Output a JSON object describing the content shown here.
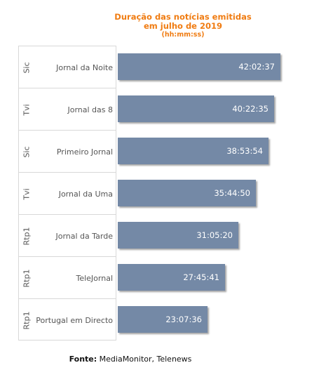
{
  "chart_data": {
    "type": "bar",
    "orientation": "horizontal",
    "title": "Duração das notícias emitidas em julho de 2019",
    "title_lines": [
      "Duração das notícias emitidas",
      "em julho de 2019"
    ],
    "subtitle": "(hh:mm:ss)",
    "bar_color": "#7489a6",
    "title_color": "#f07c12",
    "categories": [
      {
        "channel": "Sic",
        "program": "Jornal da Noite",
        "label": "42:02:37",
        "seconds": 151357
      },
      {
        "channel": "Tvi",
        "program": "Jornal das 8",
        "label": "40:22:35",
        "seconds": 145355
      },
      {
        "channel": "Sic",
        "program": "Primeiro Jornal",
        "label": "38:53:54",
        "seconds": 140034
      },
      {
        "channel": "Tvi",
        "program": "Jornal da Uma",
        "label": "35:44:50",
        "seconds": 128690
      },
      {
        "channel": "Rtp1",
        "program": "Jornal da Tarde",
        "label": "31:05:20",
        "seconds": 111920
      },
      {
        "channel": "Rtp1",
        "program": "TeleJornal",
        "label": "27:45:41",
        "seconds": 99941
      },
      {
        "channel": "Rtp1",
        "program": "Portugal em Directo",
        "label": "23:07:36",
        "seconds": 83256
      }
    ],
    "grid": false,
    "legend": "none"
  },
  "source": {
    "label": "Fonte:",
    "text": "MediaMonitor, Telenews"
  }
}
